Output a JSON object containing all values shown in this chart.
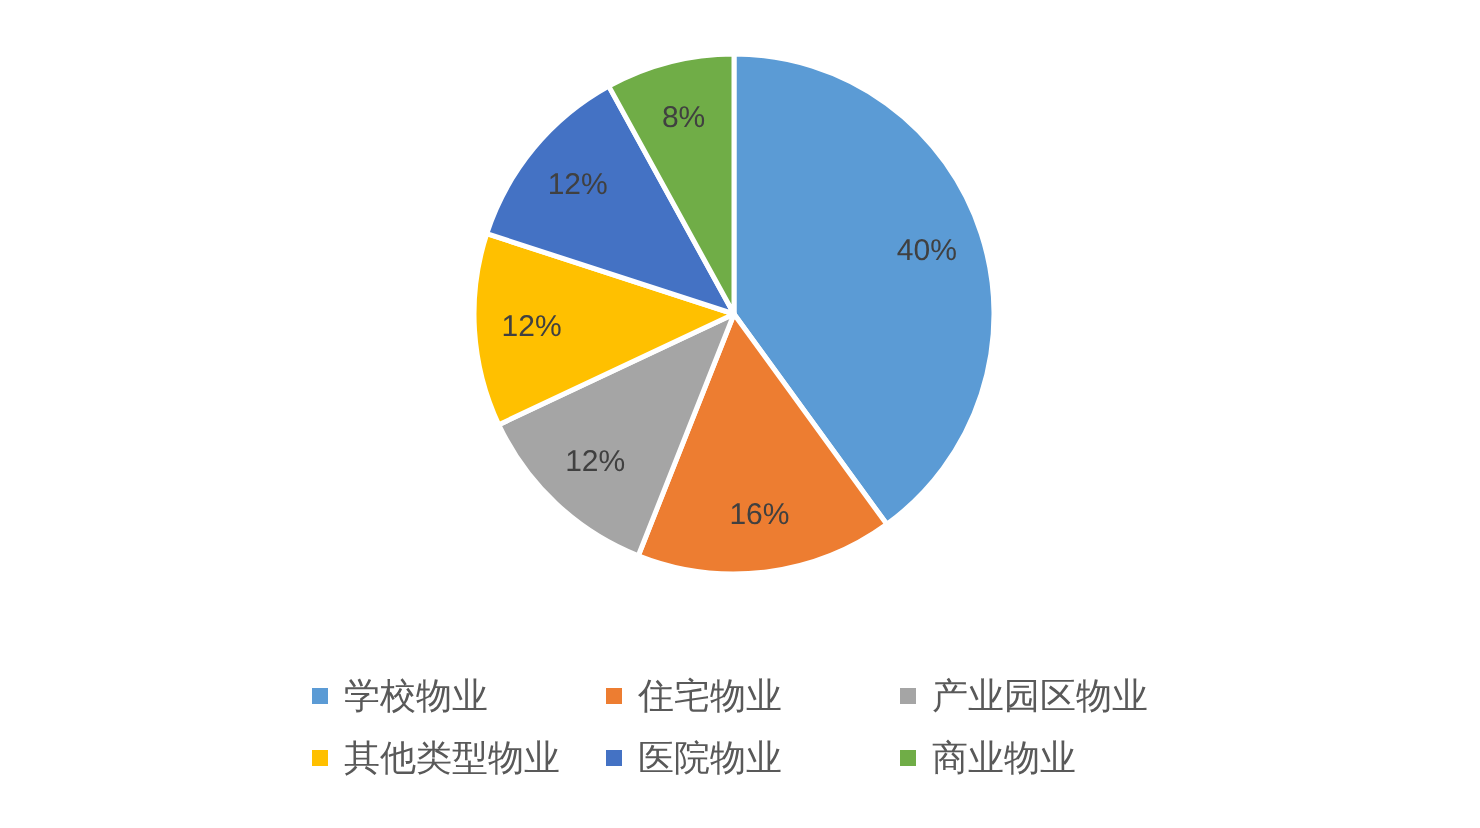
{
  "chart_data": {
    "type": "pie",
    "categories": [
      "学校物业",
      "住宅物业",
      "产业园区物业",
      "其他类型物业",
      "医院物业",
      "商业物业"
    ],
    "values": [
      40,
      16,
      12,
      12,
      12,
      8
    ],
    "colors": [
      "#5b9bd5",
      "#ed7d31",
      "#a5a5a5",
      "#ffc000",
      "#4472c4",
      "#70ad47"
    ],
    "value_labels": [
      "40%",
      "16%",
      "12%",
      "12%",
      "12%",
      "8%"
    ],
    "legend": "bottom"
  }
}
